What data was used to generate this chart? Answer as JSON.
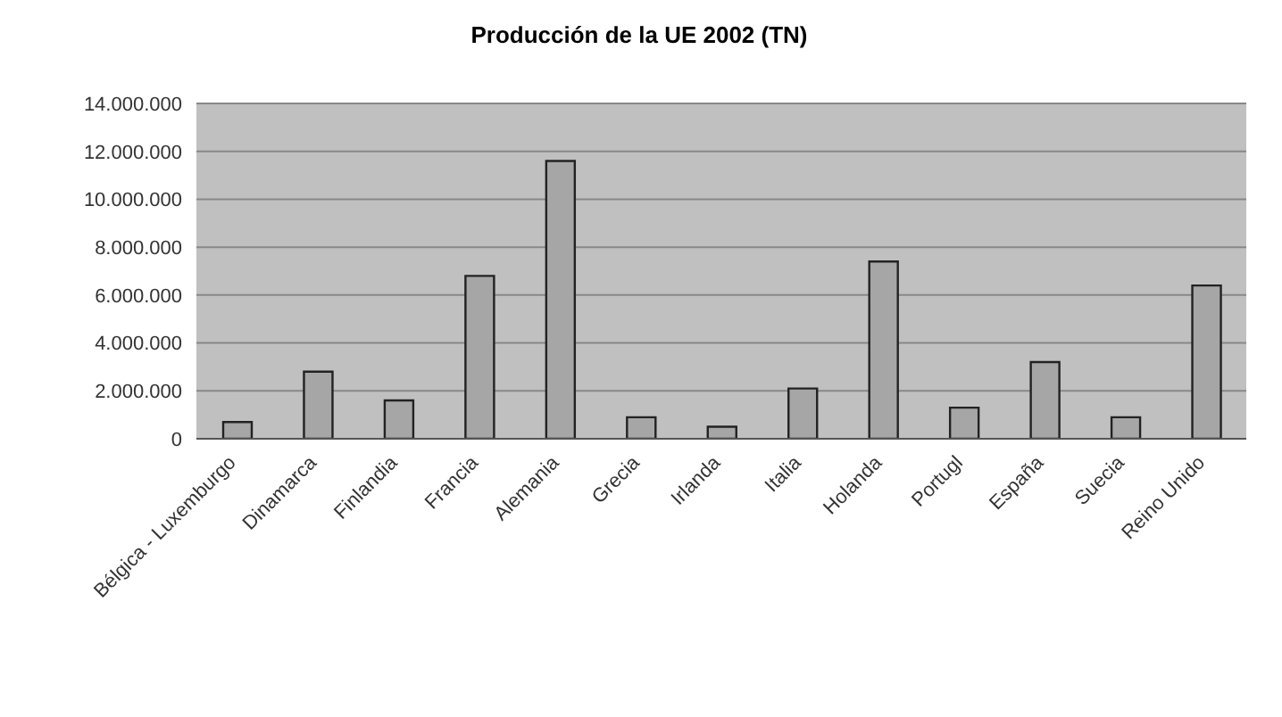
{
  "chart_data": {
    "type": "bar",
    "title": "Producción de la UE 2002 (TN)",
    "categories": [
      "Bélgica - Luxemburgo",
      "Dinamarca",
      "Finlandia",
      "Francia",
      "Alemania",
      "Grecia",
      "Irlanda",
      "Italia",
      "Holanda",
      "Portugl",
      "España",
      "Suecia",
      "Reino Unido"
    ],
    "values": [
      700000,
      2800000,
      1600000,
      6800000,
      11600000,
      900000,
      500000,
      2100000,
      7400000,
      1300000,
      3200000,
      900000,
      6400000
    ],
    "color": "#a6a6a6",
    "ylim": [
      0,
      14000000
    ],
    "yticks": [
      0,
      {
        "value": 2000000,
        "label": "2.000.000"
      },
      {
        "value": 4000000,
        "label": "4.000.000"
      },
      {
        "value": 6000000,
        "label": "6.000.000"
      },
      {
        "value": 8000000,
        "label": "8.000.000"
      },
      {
        "value": 10000000,
        "label": "10.000.000"
      },
      {
        "value": 12000000,
        "label": "12.000.000"
      },
      {
        "value": 14000000,
        "label": "14.000.000"
      }
    ],
    "grid": "y"
  }
}
